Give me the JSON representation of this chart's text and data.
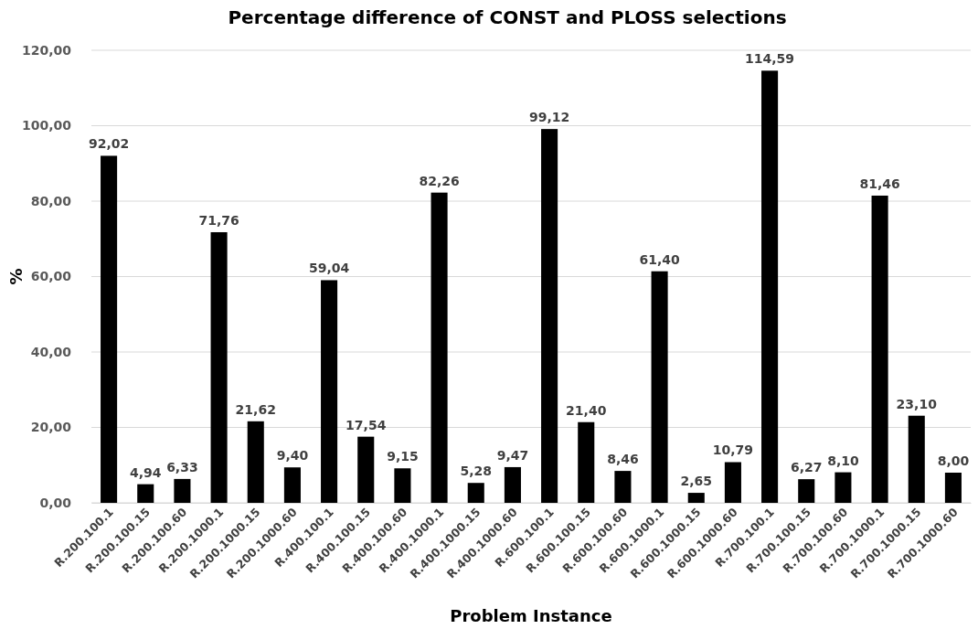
{
  "chart_data": {
    "type": "bar",
    "title": "Percentage difference of CONST and PLOSS selections",
    "xlabel": "Problem Instance",
    "ylabel": "%",
    "categories": [
      "R.200.100.1",
      "R.200.100.15",
      "R.200.100.60",
      "R.200.1000.1",
      "R.200.1000.15",
      "R.200.1000.60",
      "R.400.100.1",
      "R.400.100.15",
      "R.400.100.60",
      "R.400.1000.1",
      "R.400.1000.15",
      "R.400.1000.60",
      "R.600.100.1",
      "R.600.100.15",
      "R.600.100.60",
      "R.600.1000.1",
      "R.600.1000.15",
      "R.600.1000.60",
      "R.700.100.1",
      "R.700.100.15",
      "R.700.100.60",
      "R.700.1000.1",
      "R.700.1000.15",
      "R.700.1000.60"
    ],
    "values": [
      92.02,
      4.94,
      6.33,
      71.76,
      21.62,
      9.4,
      59.04,
      17.54,
      9.15,
      82.26,
      5.28,
      9.47,
      99.12,
      21.4,
      8.46,
      61.4,
      2.65,
      10.79,
      114.59,
      6.27,
      8.1,
      81.46,
      23.1,
      8.0
    ],
    "value_labels": [
      "92,02",
      "4,94",
      "6,33",
      "71,76",
      "21,62",
      "9,40",
      "59,04",
      "17,54",
      "9,15",
      "82,26",
      "5,28",
      "9,47",
      "99,12",
      "21,40",
      "8,46",
      "61,40",
      "2,65",
      "10,79",
      "114,59",
      "6,27",
      "8,10",
      "81,46",
      "23,10",
      "8,00"
    ],
    "color": "#000000",
    "ylim": [
      0,
      120
    ],
    "yticks": [
      {
        "value": 0,
        "label": "0,00"
      },
      {
        "value": 20,
        "label": "20,00"
      },
      {
        "value": 40,
        "label": "40,00"
      },
      {
        "value": 60,
        "label": "60,00"
      },
      {
        "value": 80,
        "label": "80,00"
      },
      {
        "value": 100,
        "label": "100,00"
      },
      {
        "value": 120,
        "label": "120,00"
      }
    ],
    "grid": "y"
  }
}
